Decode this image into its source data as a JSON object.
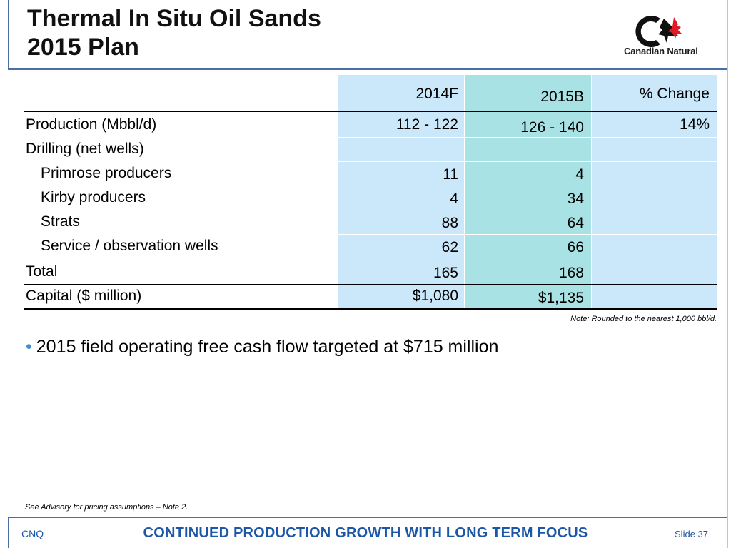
{
  "title": {
    "line1": "Thermal In Situ Oil Sands",
    "line2": "2015 Plan"
  },
  "logo": {
    "text": "Canadian Natural",
    "icon": "maple-leaf-c-logo"
  },
  "table": {
    "headers": [
      "2014F",
      "2015B",
      "% Change"
    ],
    "rows": [
      {
        "label": "Production (Mbbl/d)",
        "v2014": "112 - 122",
        "v2015": "126 - 140",
        "change": "14%"
      },
      {
        "label": "Drilling (net wells)",
        "v2014": "",
        "v2015": "",
        "change": ""
      },
      {
        "label": "Primrose producers",
        "v2014": "11",
        "v2015": "4",
        "change": ""
      },
      {
        "label": "Kirby producers",
        "v2014": "4",
        "v2015": "34",
        "change": ""
      },
      {
        "label": "Strats",
        "v2014": "88",
        "v2015": "64",
        "change": ""
      },
      {
        "label": "Service / observation wells",
        "v2014": "62",
        "v2015": "66",
        "change": ""
      },
      {
        "label": "Total",
        "v2014": "165",
        "v2015": "168",
        "change": ""
      },
      {
        "label": "Capital ($ million)",
        "v2014": "$1,080",
        "v2015": "$1,135",
        "change": ""
      }
    ]
  },
  "note": "Note: Rounded to the nearest 1,000 bbl/d.",
  "bullet": "2015 field operating free cash flow targeted at $715 million",
  "advisory": "See Advisory for pricing assumptions – Note 2.",
  "footer": {
    "left": "CNQ",
    "tagline": "CONTINUED PRODUCTION GROWTH WITH LONG TERM FOCUS",
    "slide": "Slide 37"
  },
  "colors": {
    "accent": "#1b57a6",
    "col_light": "#cbe8fb",
    "col_teal": "#a9e2e5",
    "bullet": "#3b8fd6"
  }
}
